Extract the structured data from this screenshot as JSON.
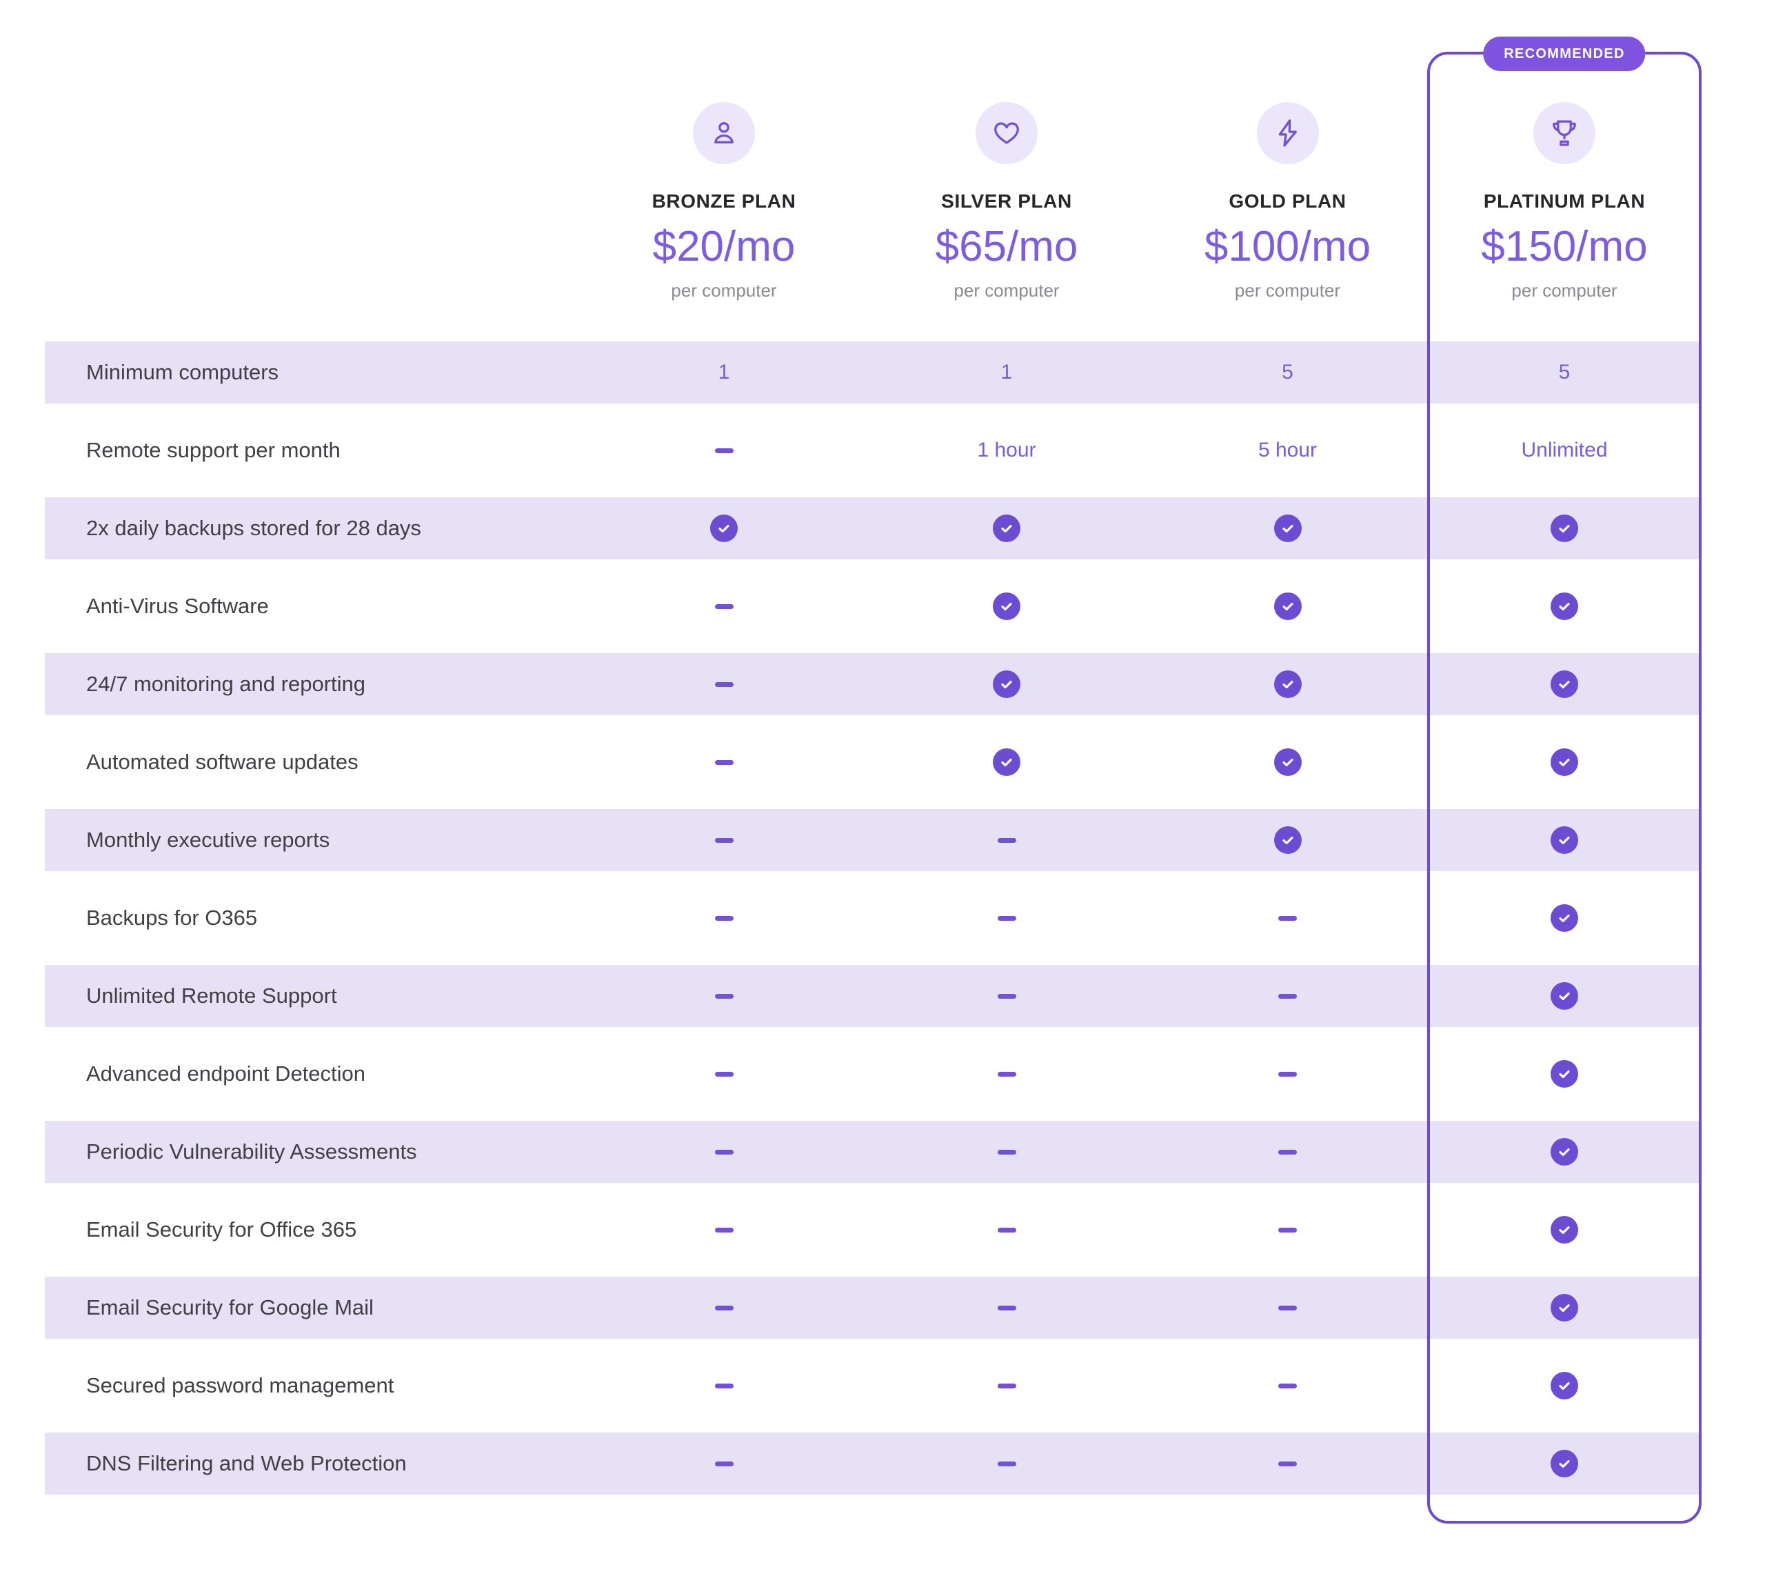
{
  "badge": {
    "label": "RECOMMENDED"
  },
  "plans": [
    {
      "id": "bronze",
      "icon": "person-icon",
      "name": "BRONZE PLAN",
      "price": "$20/mo",
      "per": "per computer",
      "recommended": false
    },
    {
      "id": "silver",
      "icon": "heart-icon",
      "name": "SILVER PLAN",
      "price": "$65/mo",
      "per": "per computer",
      "recommended": false
    },
    {
      "id": "gold",
      "icon": "lightning-icon",
      "name": "GOLD PLAN",
      "price": "$100/mo",
      "per": "per computer",
      "recommended": false
    },
    {
      "id": "platinum",
      "icon": "trophy-icon",
      "name": "PLATINUM PLAN",
      "price": "$150/mo",
      "per": "per computer",
      "recommended": true
    }
  ],
  "features": [
    {
      "label": "Minimum computers",
      "values": [
        "1",
        "1",
        "5",
        "5"
      ]
    },
    {
      "label": "Remote support per month",
      "values": [
        "dash",
        "1 hour",
        "5 hour",
        "Unlimited"
      ]
    },
    {
      "label": "2x daily backups stored for 28 days",
      "values": [
        "check",
        "check",
        "check",
        "check"
      ]
    },
    {
      "label": "Anti-Virus Software",
      "values": [
        "dash",
        "check",
        "check",
        "check"
      ]
    },
    {
      "label": "24/7 monitoring and reporting",
      "values": [
        "dash",
        "check",
        "check",
        "check"
      ]
    },
    {
      "label": "Automated software updates",
      "values": [
        "dash",
        "check",
        "check",
        "check"
      ]
    },
    {
      "label": "Monthly executive reports",
      "values": [
        "dash",
        "dash",
        "check",
        "check"
      ]
    },
    {
      "label": "Backups for O365",
      "values": [
        "dash",
        "dash",
        "dash",
        "check"
      ]
    },
    {
      "label": "Unlimited Remote Support",
      "values": [
        "dash",
        "dash",
        "dash",
        "check"
      ]
    },
    {
      "label": "Advanced endpoint Detection",
      "values": [
        "dash",
        "dash",
        "dash",
        "check"
      ]
    },
    {
      "label": "Periodic Vulnerability Assessments",
      "values": [
        "dash",
        "dash",
        "dash",
        "check"
      ]
    },
    {
      "label": "Email Security for Office 365",
      "values": [
        "dash",
        "dash",
        "dash",
        "check"
      ]
    },
    {
      "label": "Email Security for Google Mail",
      "values": [
        "dash",
        "dash",
        "dash",
        "check"
      ]
    },
    {
      "label": "Secured password management",
      "values": [
        "dash",
        "dash",
        "dash",
        "check"
      ]
    },
    {
      "label": "DNS Filtering and Web Protection",
      "values": [
        "dash",
        "dash",
        "dash",
        "check"
      ]
    }
  ],
  "colors": {
    "accent": "#7450d8",
    "row_band": "#e6e1f5",
    "icon_circle_bg": "#ebe6f9",
    "check_circle": "#6d4cd4",
    "card_border": "#6e49d1",
    "badge_bg": "#7d53e0",
    "price_text": "#7d5ce0",
    "value_text": "#7a5bdf",
    "label_text": "#3f3f45",
    "plan_name_text": "#26262b",
    "muted_text": "#8a8a91"
  }
}
